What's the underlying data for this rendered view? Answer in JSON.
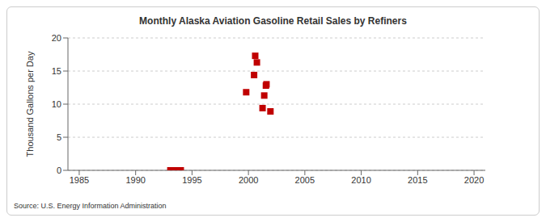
{
  "chart_data": {
    "type": "scatter",
    "title": "Monthly Alaska Aviation Gasoline Retail Sales by Refiners",
    "y_label": "Thousand Gallons per Day",
    "source": "Source: U.S. Energy Information Administration",
    "x": [
      1993.08,
      1993.17,
      1993.25,
      1993.33,
      1993.42,
      1993.5,
      1993.58,
      1993.67,
      1993.75,
      1993.83,
      1993.92,
      1994.0,
      1999.8,
      2000.5,
      2000.6,
      2000.75,
      2001.25,
      2001.4,
      2001.55,
      2001.6,
      2001.95
    ],
    "values": [
      0,
      0,
      0,
      0,
      0,
      0,
      0,
      0,
      0,
      0,
      0,
      0,
      11.8,
      14.4,
      17.3,
      16.3,
      9.4,
      11.3,
      12.8,
      13.0,
      8.9
    ],
    "color": "#c00000",
    "marker": "square",
    "xlim": [
      1984,
      2021
    ],
    "xticks": [
      1985,
      1990,
      1995,
      2000,
      2005,
      2010,
      2015,
      2020
    ],
    "ylim": [
      0,
      20
    ],
    "yticks": [
      0,
      5,
      10,
      15,
      20
    ],
    "grid": true
  }
}
